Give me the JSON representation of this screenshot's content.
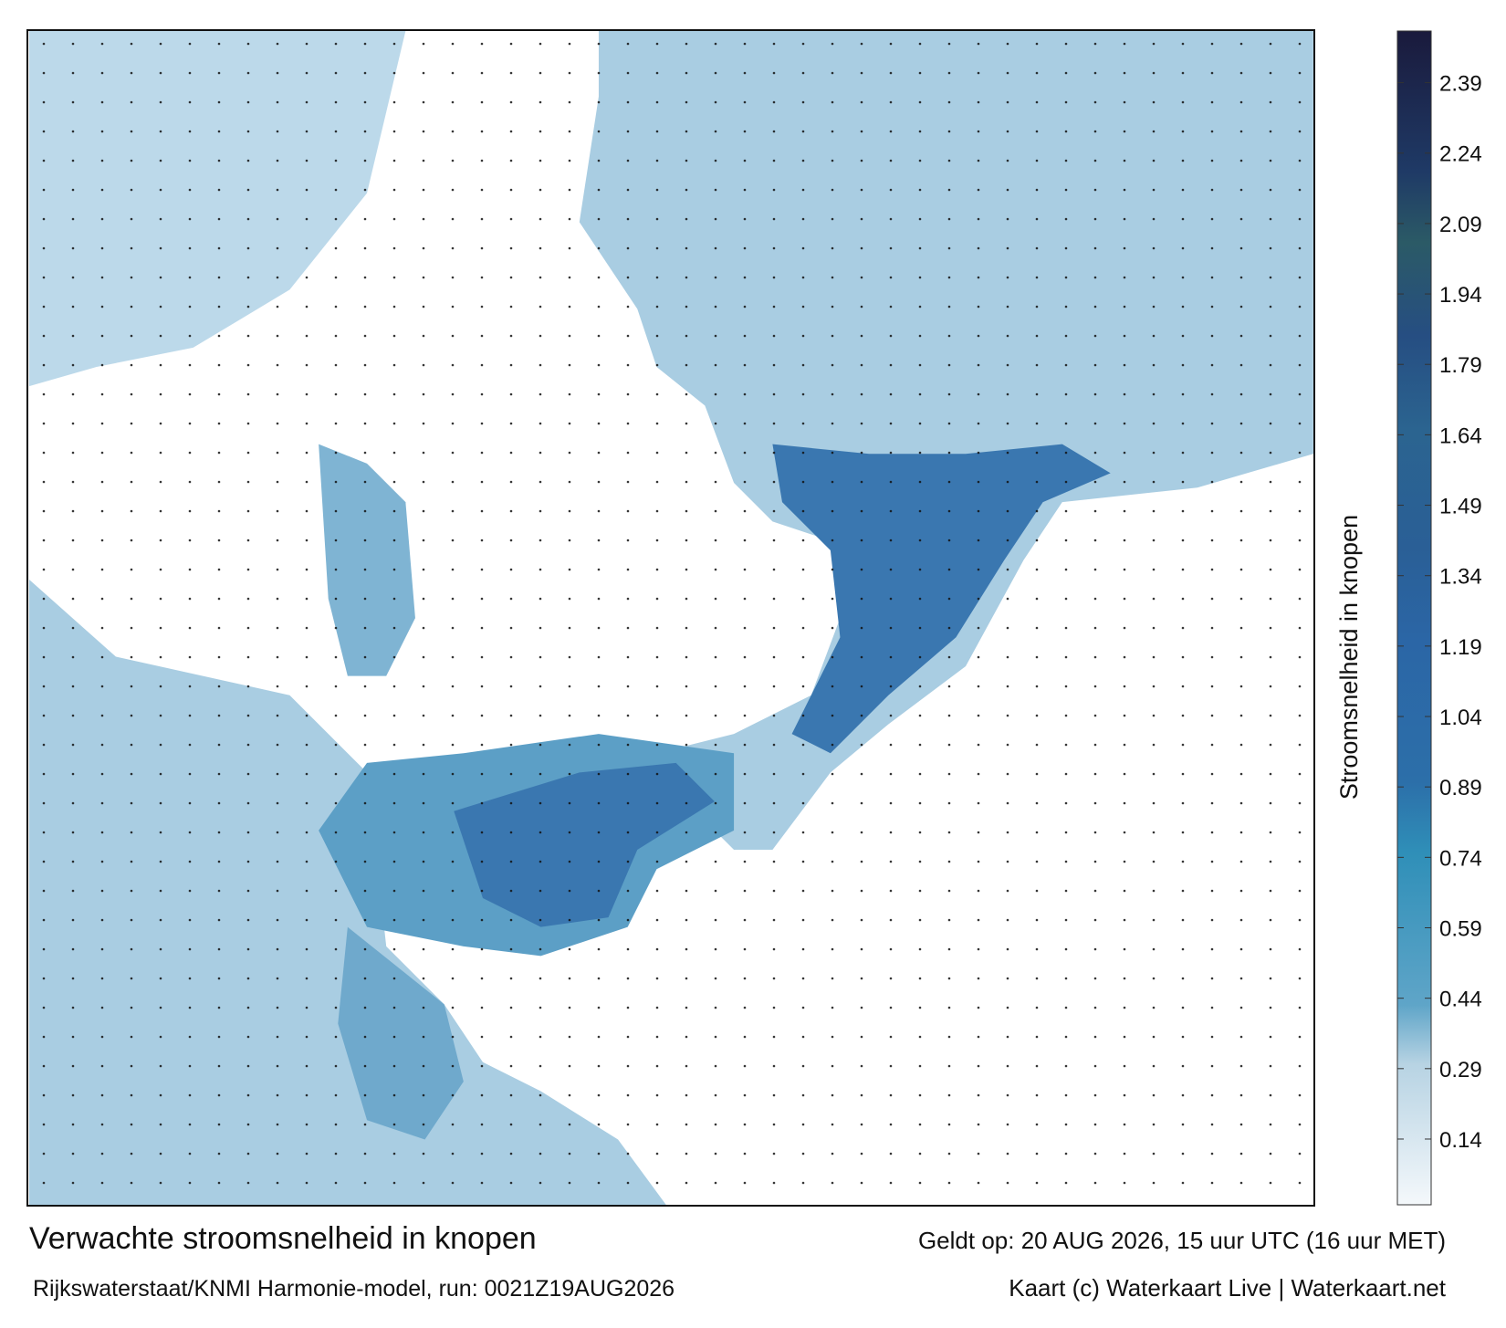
{
  "header": {
    "title": "Verwachte stroomsnelheid in knopen",
    "source": "Rijkswaterstaat/KNMI Harmonie-model, run: 0021Z19AUG2026",
    "valid": "Geldt op: 20 AUG 2026, 15 uur UTC (16 uur MET)",
    "credit": "Kaart (c) Waterkaart Live | Waterkaart.net"
  },
  "colorbar": {
    "label": "Stroomsnelheid in knopen",
    "lim": [
      0,
      2.5
    ],
    "ticks": [
      0.14,
      0.29,
      0.44,
      0.59,
      0.74,
      0.89,
      1.04,
      1.19,
      1.34,
      1.49,
      1.64,
      1.79,
      1.94,
      2.09,
      2.24,
      2.39
    ]
  }
}
